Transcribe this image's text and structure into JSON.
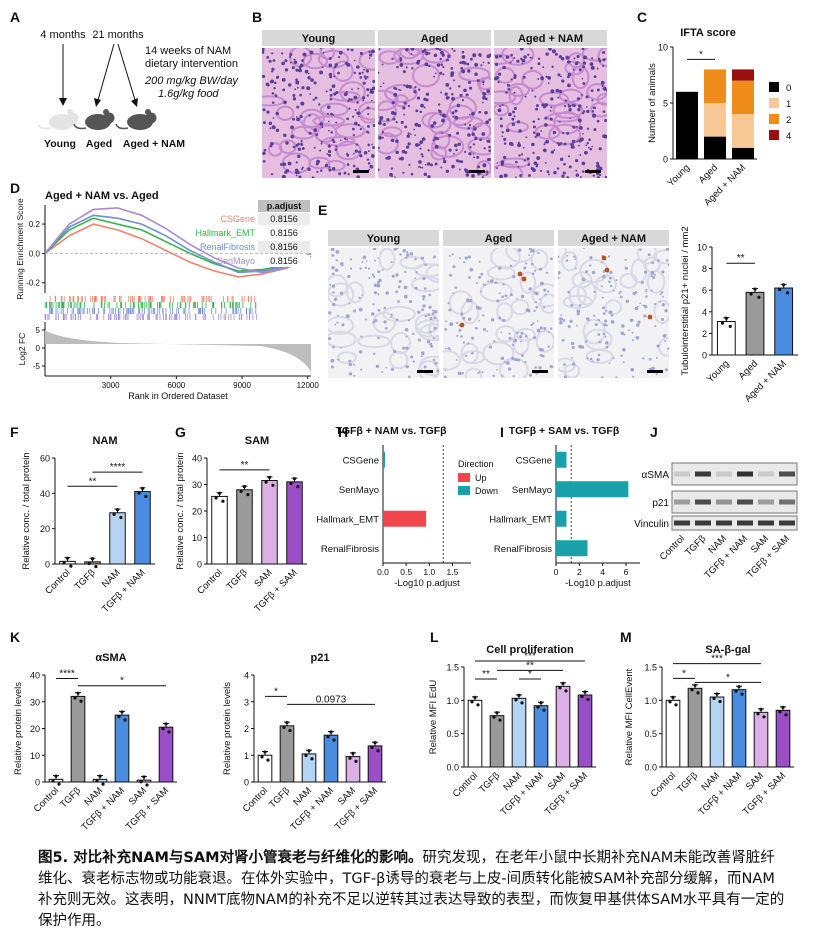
{
  "panel_letters": [
    "A",
    "B",
    "C",
    "D",
    "E",
    "F",
    "G",
    "H",
    "I",
    "J",
    "K",
    "L",
    "M"
  ],
  "panel_a": {
    "t1": "4 months",
    "t2": "21 months",
    "intervention": [
      "14 weeks of NAM",
      "dietary intervention"
    ],
    "dose": [
      "200 mg/kg BW/day",
      "1.6g/kg food"
    ],
    "groups": [
      "Young",
      "Aged",
      "Aged + NAM"
    ]
  },
  "panel_b": {
    "headers": [
      "Young",
      "Aged",
      "Aged + NAM"
    ]
  },
  "panel_e": {
    "headers": [
      "Young",
      "Aged",
      "Aged + NAM"
    ]
  },
  "colors": {
    "young": "#ffffff",
    "tgf": "#9a9a9a",
    "nam": "#b5d3f2",
    "tgfnam": "#4a8de0",
    "sam": "#dcb0e6",
    "tgfsam": "#9b4fc7",
    "up": "#f0454a",
    "down": "#1aa0a8",
    "cs": "#e8866e",
    "emt": "#36b24a",
    "fib": "#6e8fd0",
    "sen": "#a78ad0"
  },
  "chart_data": [
    {
      "id": "C",
      "type": "bar",
      "stacked": true,
      "title": "IFTA score",
      "ylabel": "Number of animals",
      "ylim": [
        0,
        10
      ],
      "yticks": [
        "0",
        "5",
        "10"
      ],
      "categories": [
        "Young",
        "Aged",
        "Aged + NAM"
      ],
      "series": [
        {
          "name": "0",
          "color": "#000000",
          "values": [
            6,
            2,
            1
          ]
        },
        {
          "name": "1",
          "color": "#f8c896",
          "values": [
            0,
            3,
            3
          ]
        },
        {
          "name": "2",
          "color": "#f08c1a",
          "values": [
            0,
            3,
            3
          ]
        },
        {
          "name": "4",
          "color": "#9a1010",
          "values": [
            0,
            0,
            1
          ]
        }
      ],
      "annotation": "*"
    },
    {
      "id": "D",
      "type": "line",
      "title": "Aged + NAM vs. Aged",
      "ylabel": "Running Enrichment Score",
      "ylabel2": "Log2 FC",
      "xlabel": "Rank in Ordered Dataset",
      "xticks": [
        "3000",
        "6000",
        "9000",
        "12000"
      ],
      "yticks": [
        "0.2",
        "0.0",
        "-0.2"
      ],
      "y2ticks": [
        "5",
        "0",
        "-5"
      ],
      "legend_header": "p.adjust",
      "series": [
        {
          "name": "CSGene",
          "padj": "0.8156"
        },
        {
          "name": "Hallmark_EMT",
          "padj": "0.8156"
        },
        {
          "name": "RenalFibrosis",
          "padj": "0.8156"
        },
        {
          "name": "SenMayo",
          "padj": "0.8156"
        }
      ]
    },
    {
      "id": "E_chart",
      "type": "bar",
      "ylabel": "Tubulointerstitial p21+ nuclei / mm2",
      "ylim": [
        0,
        10
      ],
      "yticks": [
        "0",
        "2",
        "4",
        "6",
        "8",
        "10"
      ],
      "categories": [
        "Young",
        "Aged",
        "Aged + NAM"
      ],
      "values": [
        3.1,
        5.8,
        6.2
      ],
      "annotation": "**"
    },
    {
      "id": "F",
      "type": "bar",
      "title": "NAM",
      "ylabel": "Relative conc. / total protein",
      "ylim": [
        0,
        60
      ],
      "yticks": [
        "0",
        "20",
        "40",
        "60"
      ],
      "categories": [
        "Control",
        "TGFβ",
        "NAM",
        "TGFβ + NAM"
      ],
      "values": [
        1.5,
        1.2,
        29,
        41
      ],
      "annotations": [
        "**",
        "****"
      ]
    },
    {
      "id": "G",
      "type": "bar",
      "title": "SAM",
      "ylabel": "Relative conc. / total protein",
      "ylim": [
        0,
        40
      ],
      "yticks": [
        "0",
        "10",
        "20",
        "30",
        "40"
      ],
      "categories": [
        "Control",
        "TGFβ",
        "SAM",
        "TGFβ + SAM"
      ],
      "values": [
        25.5,
        28,
        31.5,
        31
      ],
      "annotations": [
        "**"
      ]
    },
    {
      "id": "H",
      "type": "bar",
      "orientation": "horizontal",
      "title": "TGFβ + NAM vs. TGFβ",
      "xlabel": "-Log10 p.adjust",
      "xticks": [
        "0.0",
        "0.5",
        "1.0",
        "1.5"
      ],
      "categories": [
        "CSGene",
        "SenMayo",
        "Hallmark_EMT",
        "RenalFibrosis"
      ],
      "values": [
        0.02,
        0,
        0.93,
        0
      ],
      "direction": [
        "Down",
        "Down",
        "Up",
        "Down"
      ],
      "legend_title": "Direction",
      "legend": [
        "Up",
        "Down"
      ]
    },
    {
      "id": "I",
      "type": "bar",
      "orientation": "horizontal",
      "title": "TGFβ + SAM vs. TGFβ",
      "xlabel": "-Log10 p.adjust",
      "xticks": [
        "0",
        "2",
        "4",
        "6"
      ],
      "categories": [
        "CSGene",
        "SenMayo",
        "Hallmark_EMT",
        "RenalFibrosis"
      ],
      "values": [
        0.9,
        6.2,
        0.9,
        2.7
      ],
      "direction": [
        "Down",
        "Down",
        "Down",
        "Down"
      ]
    },
    {
      "id": "J",
      "type": "table",
      "rows": [
        "αSMA",
        "p21",
        "Vinculin"
      ],
      "lanes": [
        "Control",
        "TGFβ",
        "NAM",
        "TGFβ + NAM",
        "SAM",
        "TGFβ + SAM"
      ]
    },
    {
      "id": "K1",
      "type": "bar",
      "title": "αSMA",
      "ylabel": "Relative protein levels",
      "ylim": [
        0,
        40
      ],
      "yticks": [
        "0",
        "10",
        "20",
        "30",
        "40"
      ],
      "categories": [
        "Control",
        "TGFβ",
        "NAM",
        "TGFβ + NAM",
        "SAM",
        "TGFβ + SAM"
      ],
      "values": [
        1,
        32,
        1,
        25,
        0.7,
        20.5
      ],
      "annotations": [
        "****",
        "*"
      ]
    },
    {
      "id": "K2",
      "type": "bar",
      "title": "p21",
      "ylabel": "Relative protein levels",
      "ylim": [
        0,
        4
      ],
      "yticks": [
        "0",
        "1",
        "2",
        "3",
        "4"
      ],
      "categories": [
        "Control",
        "TGFβ",
        "NAM",
        "TGFβ + NAM",
        "SAM",
        "TGFβ + SAM"
      ],
      "values": [
        1,
        2.1,
        1.05,
        1.75,
        0.95,
        1.35
      ],
      "annotations": [
        "*",
        "0.0973"
      ]
    },
    {
      "id": "L",
      "type": "bar",
      "title": "Cell proliferation",
      "ylabel": "Relative MFI EdU",
      "ylim": [
        0,
        1.5
      ],
      "yticks": [
        "0.0",
        "0.5",
        "1.0",
        "1.5"
      ],
      "categories": [
        "Control",
        "TGFβ",
        "NAM",
        "TGFβ + NAM",
        "SAM",
        "TGFβ + SAM"
      ],
      "values": [
        1.0,
        0.77,
        1.03,
        0.92,
        1.21,
        1.08
      ],
      "annotations": [
        "**",
        "*",
        "**",
        "***"
      ]
    },
    {
      "id": "M",
      "type": "bar",
      "title": "SA-β-gal",
      "ylabel": "Relative MFI CellEvent",
      "ylim": [
        0,
        1.5
      ],
      "yticks": [
        "0.0",
        "0.5",
        "1.0",
        "1.5"
      ],
      "categories": [
        "Control",
        "TGFβ",
        "NAM",
        "TGFβ + NAM",
        "SAM",
        "TGFβ + SAM"
      ],
      "values": [
        1.0,
        1.18,
        1.05,
        1.16,
        0.82,
        0.85
      ],
      "annotations": [
        "*",
        "*",
        "***"
      ]
    }
  ],
  "caption": {
    "bold": "图5. 对比补充NAM与SAM对肾小管衰老与纤维化的影响。",
    "text": "研究发现，在老年小鼠中长期补充NAM未能改善肾脏纤维化、衰老标志物或功能衰退。在体外实验中，TGF-β诱导的衰老与上皮-间质转化能被SAM补充部分缓解，而NAM补充则无效。这表明，NNMT底物NAM的补充不足以逆转其过表达导致的表型，而恢复甲基供体SAM水平具有一定的保护作用。"
  }
}
